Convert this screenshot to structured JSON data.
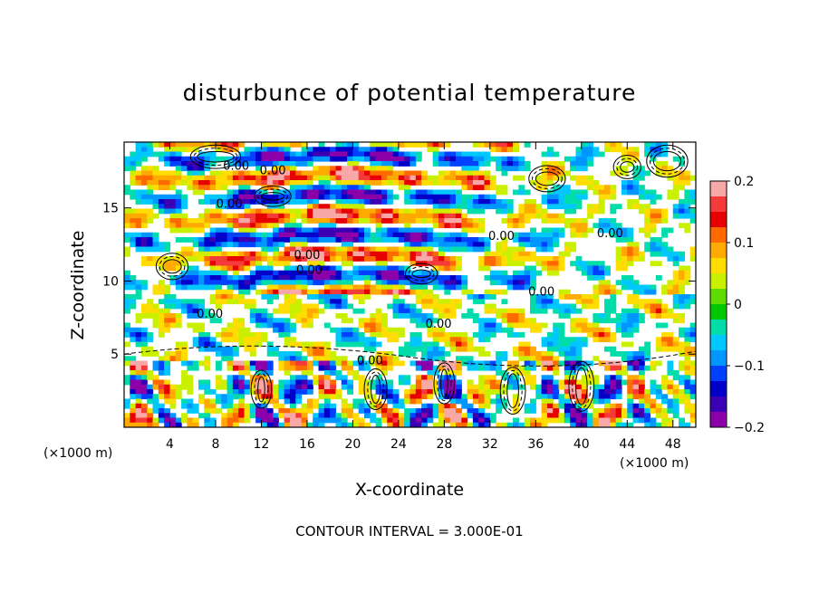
{
  "chart_data": {
    "type": "heatmap",
    "title": "disturbunce of potential temperature",
    "xlabel": "X-coordinate",
    "ylabel": "Z-coordinate",
    "x_unit": "(×1000 m)",
    "x_unit_right": "(×1000 m)",
    "xlim": [
      0,
      50
    ],
    "ylim": [
      0,
      19.5
    ],
    "x_ticks": [
      4,
      8,
      12,
      16,
      20,
      24,
      28,
      32,
      36,
      40,
      44,
      48
    ],
    "y_ticks": [
      5,
      10,
      15
    ],
    "colorbar": {
      "range": [
        -0.2,
        0.2
      ],
      "ticks": [
        "0.2",
        "0.1",
        "0",
        "−0.1",
        "−0.2"
      ],
      "colors": [
        "#f9a8a8",
        "#f53a3a",
        "#e60000",
        "#ff6a00",
        "#ffaa00",
        "#ffdd00",
        "#c8f000",
        "#5fdc00",
        "#00c800",
        "#00dcaa",
        "#00c8ff",
        "#0096ff",
        "#0040ff",
        "#0000c8",
        "#3c00b4",
        "#8c00aa"
      ]
    },
    "contour_interval_text": "CONTOUR INTERVAL = 3.000E-01",
    "contour_labels": [
      {
        "x": 9.8,
        "z": 17.6,
        "text": "0.00"
      },
      {
        "x": 13.0,
        "z": 17.3,
        "text": "0.00"
      },
      {
        "x": 9.2,
        "z": 15.0,
        "text": "0.00"
      },
      {
        "x": 42.5,
        "z": 13.0,
        "text": "0.00"
      },
      {
        "x": 33.0,
        "z": 12.8,
        "text": "0.00"
      },
      {
        "x": 16.0,
        "z": 11.5,
        "text": "0.00"
      },
      {
        "x": 16.2,
        "z": 10.5,
        "text": "0.00"
      },
      {
        "x": 36.5,
        "z": 9.0,
        "text": "0.00"
      },
      {
        "x": 7.5,
        "z": 7.5,
        "text": "0.00"
      },
      {
        "x": 27.5,
        "z": 6.8,
        "text": "0.00"
      },
      {
        "x": 21.5,
        "z": 4.3,
        "text": "0.00"
      }
    ]
  }
}
